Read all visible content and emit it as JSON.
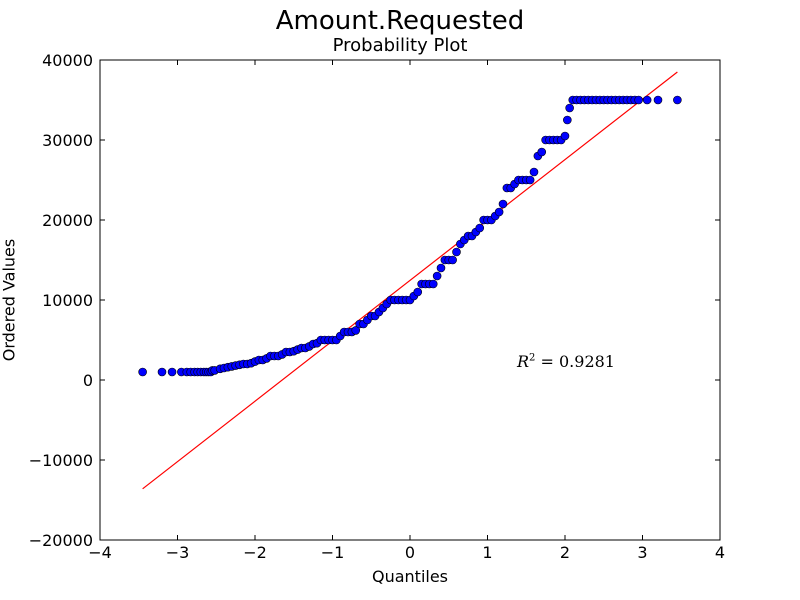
{
  "chart_data": {
    "type": "scatter",
    "title": "Amount.Requested",
    "subtitle": "Probability Plot",
    "xlabel": "Quantiles",
    "ylabel": "Ordered Values",
    "xlim": [
      -4,
      4
    ],
    "ylim": [
      -20000,
      40000
    ],
    "xticks": [
      -4,
      -3,
      -2,
      -1,
      0,
      1,
      2,
      3,
      4
    ],
    "xtick_labels": [
      "−4",
      "−3",
      "−2",
      "−1",
      "0",
      "1",
      "2",
      "3",
      "4"
    ],
    "yticks": [
      -20000,
      -10000,
      0,
      10000,
      20000,
      30000,
      40000
    ],
    "ytick_labels": [
      "−20000",
      "−10000",
      "0",
      "10000",
      "20000",
      "30000",
      "40000"
    ],
    "grid": false,
    "annotation": {
      "r2_var": "R",
      "r2_exp": "2",
      "r2_eq": " = 0.9281"
    },
    "series": [
      {
        "kind": "scatter",
        "color": "#0000ff",
        "edgecolor": "#000000",
        "x": [
          -3.45,
          -3.2,
          -3.07,
          -2.95,
          -2.88,
          -2.83,
          -2.78,
          -2.74,
          -2.7,
          -2.66,
          -2.63,
          -2.6,
          -2.57,
          -2.55,
          -2.52,
          -2.45,
          -2.4,
          -2.35,
          -2.3,
          -2.25,
          -2.2,
          -2.15,
          -2.1,
          -2.05,
          -2.0,
          -1.95,
          -1.9,
          -1.85,
          -1.8,
          -1.75,
          -1.7,
          -1.65,
          -1.6,
          -1.55,
          -1.5,
          -1.45,
          -1.4,
          -1.35,
          -1.3,
          -1.25,
          -1.2,
          -1.15,
          -1.1,
          -1.05,
          -1.0,
          -0.95,
          -0.9,
          -0.85,
          -0.8,
          -0.75,
          -0.7,
          -0.65,
          -0.6,
          -0.55,
          -0.5,
          -0.45,
          -0.4,
          -0.35,
          -0.3,
          -0.25,
          -0.2,
          -0.15,
          -0.1,
          -0.05,
          0.0,
          0.05,
          0.1,
          0.15,
          0.2,
          0.25,
          0.3,
          0.35,
          0.4,
          0.45,
          0.5,
          0.55,
          0.6,
          0.65,
          0.7,
          0.75,
          0.8,
          0.85,
          0.9,
          0.95,
          1.0,
          1.05,
          1.1,
          1.15,
          1.2,
          1.25,
          1.3,
          1.35,
          1.4,
          1.45,
          1.5,
          1.55,
          1.6,
          1.65,
          1.7,
          1.75,
          1.8,
          1.85,
          1.9,
          1.95,
          2.0,
          2.03,
          2.06,
          2.1,
          2.15,
          2.2,
          2.25,
          2.3,
          2.35,
          2.4,
          2.45,
          2.5,
          2.55,
          2.6,
          2.65,
          2.7,
          2.75,
          2.8,
          2.85,
          2.9,
          2.95,
          3.06,
          3.2,
          3.45
        ],
        "y": [
          1000,
          1000,
          1000,
          1000,
          1000,
          1000,
          1000,
          1000,
          1000,
          1000,
          1000,
          1000,
          1000,
          1200,
          1200,
          1400,
          1500,
          1600,
          1700,
          1800,
          1900,
          2000,
          2000,
          2100,
          2300,
          2500,
          2500,
          2700,
          3000,
          3000,
          3000,
          3200,
          3500,
          3500,
          3600,
          3800,
          4000,
          4000,
          4200,
          4500,
          4600,
          5000,
          5000,
          5000,
          5000,
          5000,
          5500,
          6000,
          6000,
          6000,
          6200,
          7000,
          7000,
          7500,
          8000,
          8000,
          8500,
          9000,
          9500,
          10000,
          10000,
          10000,
          10000,
          10000,
          10000,
          10500,
          11000,
          12000,
          12000,
          12000,
          12000,
          13000,
          14000,
          15000,
          15000,
          15000,
          16000,
          17000,
          17500,
          18000,
          18000,
          18500,
          19000,
          20000,
          20000,
          20000,
          20500,
          21000,
          22000,
          24000,
          24000,
          24500,
          25000,
          25000,
          25000,
          25000,
          26000,
          28000,
          28500,
          30000,
          30000,
          30000,
          30000,
          30000,
          30500,
          32500,
          34000,
          35000,
          35000,
          35000,
          35000,
          35000,
          35000,
          35000,
          35000,
          35000,
          35000,
          35000,
          35000,
          35000,
          35000,
          35000,
          35000,
          35000,
          35000,
          35000,
          35000,
          35000
        ]
      },
      {
        "kind": "line",
        "color": "#ff0000",
        "x": [
          -3.45,
          3.45
        ],
        "y": [
          -13600,
          38500
        ]
      }
    ]
  }
}
